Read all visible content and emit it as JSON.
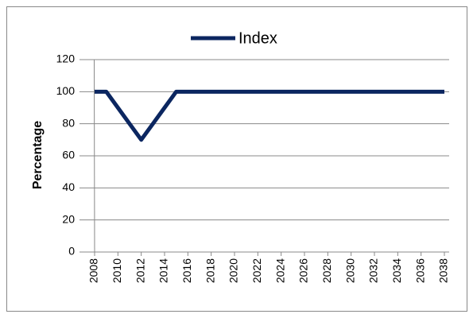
{
  "chart_data": {
    "type": "line",
    "x": [
      2008,
      2009,
      2010,
      2011,
      2012,
      2013,
      2014,
      2015,
      2016,
      2017,
      2018,
      2019,
      2020,
      2021,
      2022,
      2023,
      2024,
      2025,
      2026,
      2027,
      2028,
      2029,
      2030,
      2031,
      2032,
      2033,
      2034,
      2035,
      2036,
      2037,
      2038
    ],
    "series": [
      {
        "name": "Index",
        "color": "#0b2660",
        "values": [
          100,
          100,
          90,
          80,
          70,
          80,
          90,
          100,
          100,
          100,
          100,
          100,
          100,
          100,
          100,
          100,
          100,
          100,
          100,
          100,
          100,
          100,
          100,
          100,
          100,
          100,
          100,
          100,
          100,
          100,
          100
        ]
      }
    ],
    "ylabel": "Percentage",
    "xlim": [
      2008,
      2038
    ],
    "xticks": [
      2008,
      2010,
      2012,
      2014,
      2016,
      2018,
      2020,
      2022,
      2024,
      2026,
      2028,
      2030,
      2032,
      2034,
      2036,
      2038
    ],
    "ylim": [
      0,
      120
    ],
    "yticks": [
      0,
      20,
      40,
      60,
      80,
      100,
      120
    ],
    "grid": true,
    "legend": "top"
  }
}
